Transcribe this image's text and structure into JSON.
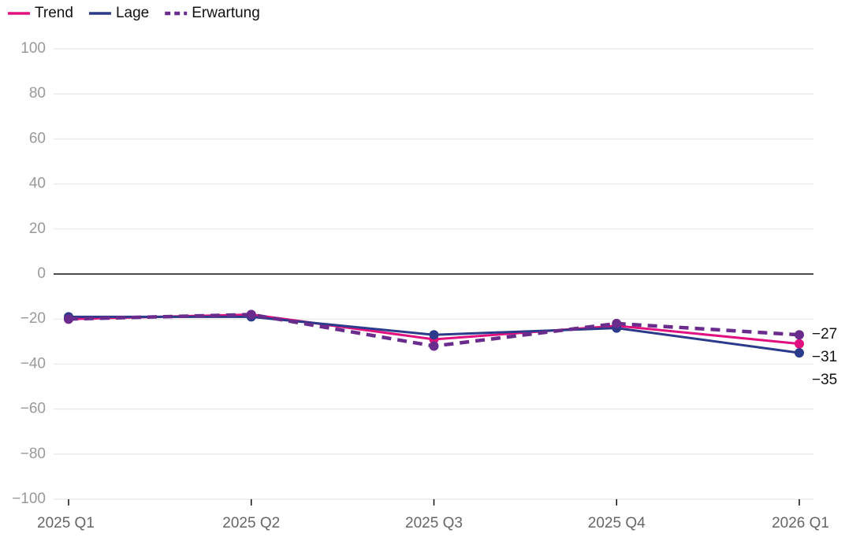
{
  "chart_data": {
    "type": "line",
    "categories": [
      "2025 Q1",
      "2025 Q2",
      "2025 Q3",
      "2025 Q4",
      "2026 Q1"
    ],
    "series": [
      {
        "name": "Trend",
        "color": "#e0117f",
        "dashed": false,
        "values": [
          -20,
          -18,
          -29,
          -23,
          -31
        ],
        "value_labels": [
          null,
          null,
          null,
          null,
          "−31"
        ]
      },
      {
        "name": "Lage",
        "color": "#2b3a8a",
        "dashed": false,
        "values": [
          -19,
          -19,
          -27,
          -24,
          -35
        ],
        "value_labels": [
          null,
          null,
          null,
          null,
          "−35"
        ]
      },
      {
        "name": "Erwartung",
        "color": "#6a2c8c",
        "dashed": true,
        "values": [
          -20,
          -18,
          -32,
          -22,
          -27
        ],
        "value_labels": [
          null,
          null,
          null,
          null,
          "−27"
        ]
      }
    ],
    "ylim": [
      -100,
      100
    ],
    "yticks": [
      {
        "value": -100,
        "label": "−100"
      },
      {
        "value": -80,
        "label": "−80"
      },
      {
        "value": -60,
        "label": "−60"
      },
      {
        "value": -40,
        "label": "−40"
      },
      {
        "value": -20,
        "label": "−20"
      },
      0,
      20,
      40,
      60,
      80,
      100
    ],
    "grid": true,
    "legend": "top-left"
  }
}
